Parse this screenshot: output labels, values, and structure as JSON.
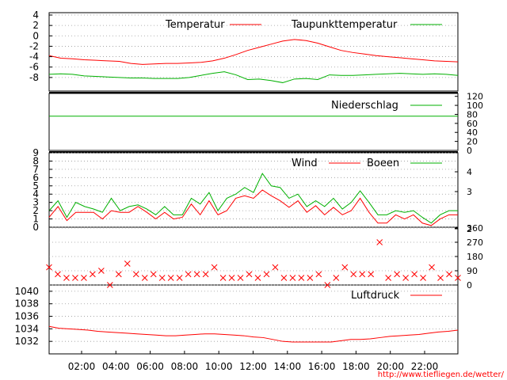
{
  "colors": {
    "red": "#ff0000",
    "green": "#00b000",
    "grid": "#9a9a9a",
    "axis": "#000000"
  },
  "footer": {
    "url": "http://www.tiefliegen.de/wetter/"
  },
  "chart_data": [
    {
      "type": "line",
      "id": "temp",
      "ylim": [
        -10,
        4
      ],
      "yticks": [
        4,
        2,
        0,
        -2,
        -4,
        -6,
        -8
      ],
      "yticks_right": [],
      "grid": true,
      "series": [
        {
          "name": "Temperatur",
          "color": "#ff0000",
          "values": [
            -3.8,
            -4.3,
            -4.4,
            -4.6,
            -4.7,
            -4.8,
            -4.9,
            -5.3,
            -5.5,
            -5.4,
            -5.3,
            -5.3,
            -5.2,
            -5.1,
            -4.8,
            -4.3,
            -3.6,
            -2.8,
            -2.2,
            -1.6,
            -1.0,
            -0.7,
            -0.9,
            -1.4,
            -2.1,
            -2.8,
            -3.2,
            -3.5,
            -3.8,
            -4.0,
            -4.2,
            -4.4,
            -4.6,
            -4.8,
            -4.9,
            -5.0
          ]
        },
        {
          "name": "Taupunkttemperatur",
          "color": "#00b000",
          "values": [
            -7.4,
            -7.3,
            -7.4,
            -7.7,
            -7.8,
            -7.9,
            -8.0,
            -8.1,
            -8.1,
            -8.2,
            -8.2,
            -8.2,
            -8.0,
            -7.6,
            -7.2,
            -6.9,
            -7.5,
            -8.4,
            -8.3,
            -8.6,
            -9.0,
            -8.3,
            -8.2,
            -8.4,
            -7.5,
            -7.6,
            -7.6,
            -7.5,
            -7.4,
            -7.3,
            -7.2,
            -7.3,
            -7.4,
            -7.3,
            -7.4,
            -7.6
          ]
        }
      ]
    },
    {
      "type": "line",
      "id": "precip",
      "ylim": [
        0,
        130
      ],
      "yticks": [],
      "yticks_right": [
        120,
        100,
        80,
        60,
        40,
        20,
        0
      ],
      "grid": false,
      "series": [
        {
          "name": "Niederschlag",
          "color": "#00b000",
          "values": [
            76,
            76,
            76,
            76,
            76,
            76,
            76,
            76,
            76,
            76,
            76,
            76,
            76,
            76,
            76,
            76,
            76,
            76,
            76,
            76,
            76,
            76,
            76,
            76,
            76,
            76,
            76,
            76,
            76,
            76,
            76,
            76,
            76,
            76,
            76,
            76
          ]
        }
      ]
    },
    {
      "type": "line",
      "id": "wind",
      "ylim": [
        0,
        9
      ],
      "yticks": [
        9,
        8,
        7,
        6,
        5,
        4,
        3,
        2,
        1,
        0
      ],
      "yticks_right": [
        4,
        3,
        2
      ],
      "grid": true,
      "series": [
        {
          "name": "Wind",
          "color": "#ff0000",
          "values": [
            1.2,
            2.5,
            0.8,
            1.8,
            1.8,
            1.8,
            1.0,
            2.0,
            1.8,
            1.8,
            2.5,
            1.8,
            1.0,
            1.8,
            1.0,
            1.2,
            2.8,
            1.5,
            3.2,
            1.5,
            2.0,
            3.5,
            3.8,
            3.5,
            4.5,
            3.8,
            3.2,
            2.4,
            3.2,
            1.8,
            2.6,
            1.5,
            2.4,
            1.5,
            2.0,
            3.5,
            1.8,
            0.5,
            0.5,
            1.5,
            1.0,
            1.5,
            0.5,
            0.2,
            1.0,
            1.5,
            1.5
          ]
        },
        {
          "name": "Boeen",
          "color": "#00b000",
          "values": [
            2.0,
            3.2,
            1.2,
            3.0,
            2.5,
            2.2,
            1.8,
            3.5,
            2.0,
            2.5,
            2.7,
            2.2,
            1.5,
            2.5,
            1.5,
            1.5,
            3.5,
            2.8,
            4.2,
            2.0,
            3.5,
            4.0,
            4.8,
            4.2,
            6.5,
            5.0,
            4.8,
            3.5,
            4.0,
            2.5,
            3.2,
            2.5,
            3.5,
            2.2,
            3.0,
            4.4,
            3.0,
            1.5,
            1.5,
            2.0,
            1.8,
            2.0,
            1.2,
            0.5,
            1.5,
            2.0,
            2.0
          ]
        }
      ]
    },
    {
      "type": "scatter",
      "id": "direction",
      "ylim": [
        0,
        360
      ],
      "yticks": [],
      "yticks_right": [
        360,
        270,
        180,
        90,
        0
      ],
      "grid": true,
      "series": [
        {
          "name": "",
          "color": "#ff0000",
          "values": [
            112,
            68,
            45,
            45,
            45,
            68,
            90,
            0,
            68,
            135,
            68,
            45,
            68,
            45,
            45,
            45,
            68,
            68,
            68,
            112,
            45,
            45,
            45,
            68,
            45,
            68,
            112,
            45,
            45,
            45,
            45,
            68,
            0,
            45,
            112,
            68,
            68,
            68,
            270,
            45,
            68,
            45,
            68,
            45,
            112,
            45,
            68,
            45
          ]
        }
      ]
    },
    {
      "type": "line",
      "id": "pressure",
      "ylim": [
        1030,
        1041
      ],
      "yticks": [
        1040,
        1038,
        1036,
        1034,
        1032
      ],
      "yticks_right": [],
      "grid": true,
      "xticks": [
        "02:00",
        "04:00",
        "06:00",
        "08:00",
        "10:00",
        "12:00",
        "14:00",
        "16:00",
        "18:00",
        "20:00",
        "22:00"
      ],
      "series": [
        {
          "name": "Luftdruck",
          "color": "#ff0000",
          "values": [
            1034.4,
            1034.1,
            1034.0,
            1033.9,
            1033.8,
            1033.6,
            1033.5,
            1033.4,
            1033.3,
            1033.2,
            1033.1,
            1033.0,
            1032.9,
            1032.9,
            1033.0,
            1033.1,
            1033.2,
            1033.2,
            1033.1,
            1033.0,
            1032.9,
            1032.7,
            1032.6,
            1032.3,
            1032.0,
            1031.9,
            1031.9,
            1031.9,
            1031.9,
            1031.9,
            1032.1,
            1032.3,
            1032.3,
            1032.4,
            1032.6,
            1032.8,
            1032.9,
            1033.0,
            1033.1,
            1033.3,
            1033.5,
            1033.6,
            1033.8
          ]
        }
      ]
    }
  ]
}
